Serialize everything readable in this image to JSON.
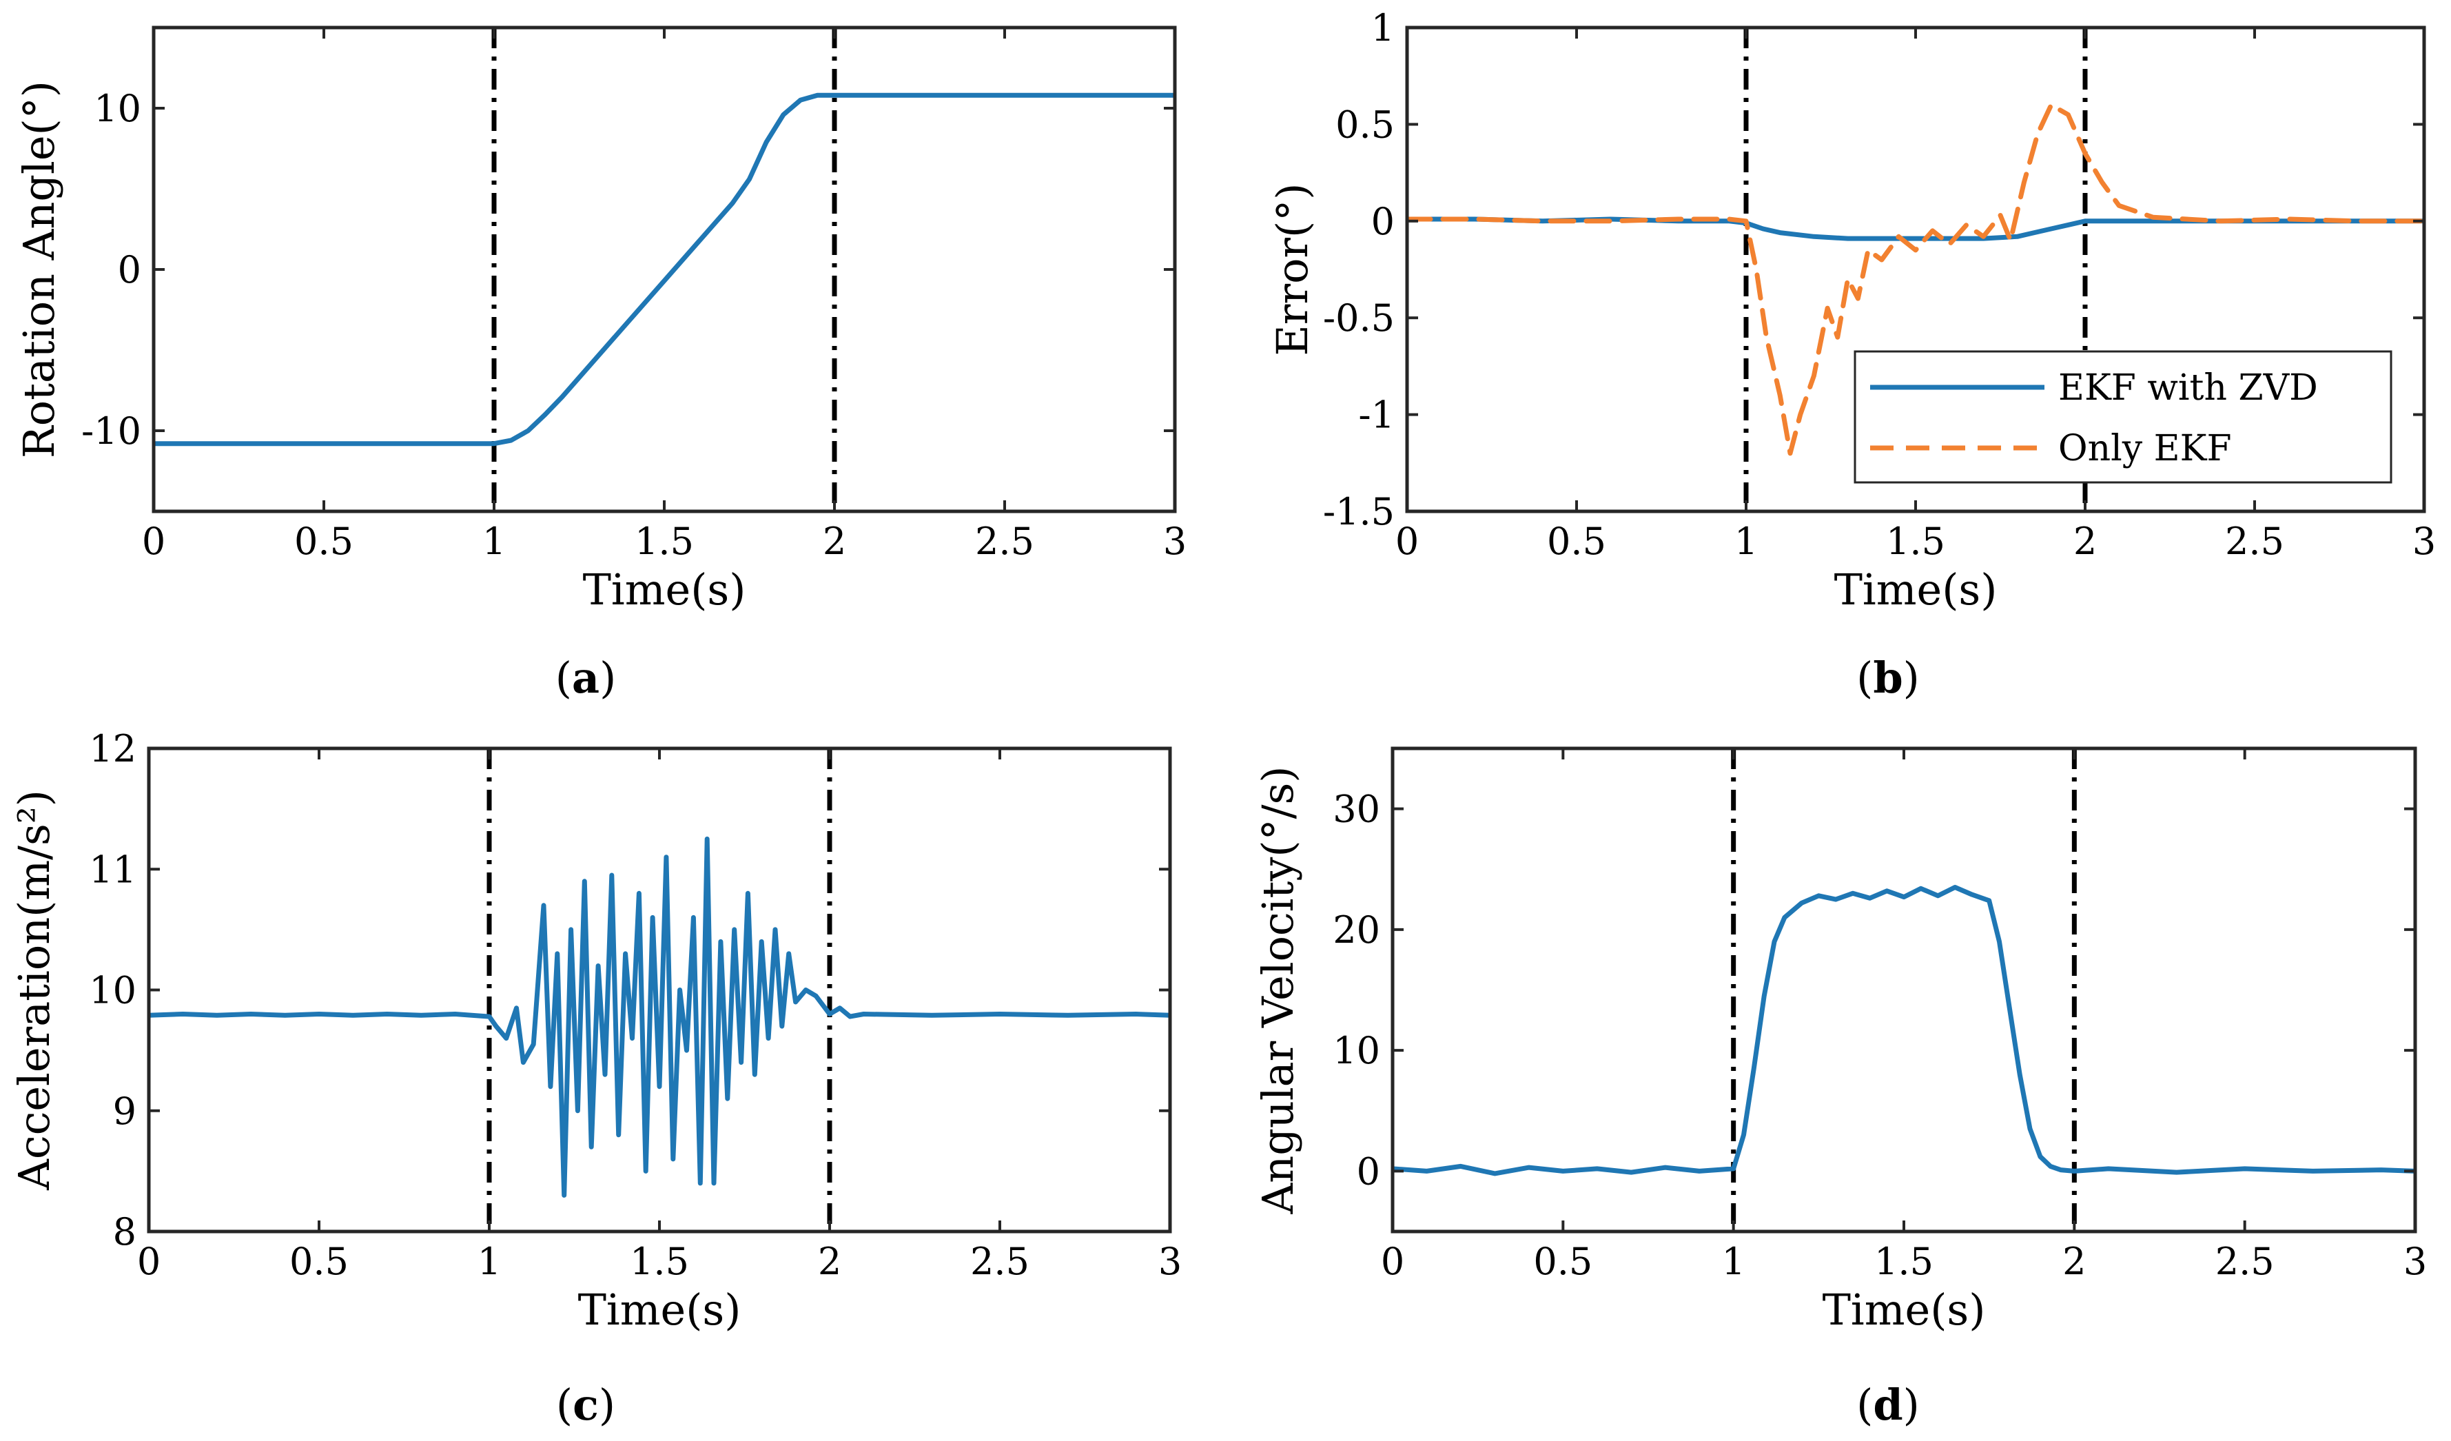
{
  "colors": {
    "series_blue": "#1f77b4",
    "series_orange": "#f28130",
    "marker_line": "#000000",
    "axes": "#262626"
  },
  "chart_data": [
    {
      "id": "a",
      "type": "line",
      "caption": "a",
      "xlabel": "Time(s)",
      "ylabel": "Rotation Angle(°)",
      "xlim": [
        0,
        3
      ],
      "ylim": [
        -15,
        15
      ],
      "xticks": [
        0,
        0.5,
        1,
        1.5,
        2,
        2.5,
        3
      ],
      "xtick_labels": [
        "0",
        "0.5",
        "1",
        "1.5",
        "2",
        "2.5",
        "3"
      ],
      "yticks": [
        -10,
        0,
        10
      ],
      "ytick_labels": [
        "-10",
        "0",
        "10"
      ],
      "event_lines_x": [
        1,
        2
      ],
      "series": [
        {
          "name": "Rotation Angle",
          "color": "#1f77b4",
          "dash": "solid",
          "x": [
            0,
            0.25,
            0.5,
            0.75,
            1.0,
            1.05,
            1.1,
            1.15,
            1.2,
            1.3,
            1.4,
            1.5,
            1.6,
            1.7,
            1.75,
            1.8,
            1.85,
            1.9,
            1.95,
            2.0,
            2.25,
            2.5,
            2.75,
            3.0
          ],
          "y": [
            -10.8,
            -10.8,
            -10.8,
            -10.8,
            -10.8,
            -10.6,
            -10.0,
            -9.0,
            -7.9,
            -5.5,
            -3.1,
            -0.7,
            1.7,
            4.1,
            5.6,
            7.9,
            9.6,
            10.5,
            10.8,
            10.8,
            10.8,
            10.8,
            10.8,
            10.8
          ]
        }
      ]
    },
    {
      "id": "b",
      "type": "line",
      "caption": "b",
      "xlabel": "Time(s)",
      "ylabel": "Error(°)",
      "xlim": [
        0,
        3
      ],
      "ylim": [
        -1.5,
        1
      ],
      "xticks": [
        0,
        0.5,
        1,
        1.5,
        2,
        2.5,
        3
      ],
      "xtick_labels": [
        "0",
        "0.5",
        "1",
        "1.5",
        "2",
        "2.5",
        "3"
      ],
      "yticks": [
        -1.5,
        -1,
        -0.5,
        0,
        0.5,
        1
      ],
      "ytick_labels": [
        "-1.5",
        "-1",
        "-0.5",
        "0",
        "0.5",
        "1"
      ],
      "event_lines_x": [
        1,
        2
      ],
      "legend": {
        "position": "lower-right",
        "entries": [
          "EKF with ZVD",
          "Only EKF"
        ]
      },
      "series": [
        {
          "name": "EKF with ZVD",
          "color": "#1f77b4",
          "dash": "solid",
          "x": [
            0,
            0.2,
            0.4,
            0.6,
            0.8,
            0.95,
            1.0,
            1.05,
            1.1,
            1.2,
            1.3,
            1.4,
            1.5,
            1.6,
            1.7,
            1.8,
            1.85,
            1.9,
            1.95,
            2.0,
            2.1,
            2.3,
            2.5,
            2.7,
            2.9,
            3.0
          ],
          "y": [
            0.01,
            0.01,
            0.0,
            0.01,
            0.0,
            0.0,
            -0.01,
            -0.04,
            -0.06,
            -0.08,
            -0.09,
            -0.09,
            -0.09,
            -0.09,
            -0.09,
            -0.08,
            -0.06,
            -0.04,
            -0.02,
            0.0,
            0.0,
            0.0,
            0.0,
            0.0,
            0.0,
            0.0
          ]
        },
        {
          "name": "Only EKF",
          "color": "#f28130",
          "dash": "dashed",
          "x": [
            0,
            0.2,
            0.4,
            0.6,
            0.8,
            0.95,
            1.0,
            1.03,
            1.06,
            1.1,
            1.13,
            1.16,
            1.2,
            1.24,
            1.27,
            1.3,
            1.33,
            1.36,
            1.4,
            1.45,
            1.5,
            1.55,
            1.6,
            1.65,
            1.7,
            1.75,
            1.78,
            1.82,
            1.86,
            1.9,
            1.95,
            2.0,
            2.05,
            2.1,
            2.2,
            2.4,
            2.6,
            2.8,
            3.0
          ],
          "y": [
            0.01,
            0.01,
            0.0,
            0.0,
            0.01,
            0.01,
            0.0,
            -0.25,
            -0.6,
            -0.9,
            -1.2,
            -1.0,
            -0.8,
            -0.45,
            -0.6,
            -0.3,
            -0.4,
            -0.15,
            -0.2,
            -0.08,
            -0.15,
            -0.05,
            -0.12,
            -0.02,
            -0.08,
            0.03,
            -0.1,
            0.2,
            0.45,
            0.6,
            0.55,
            0.35,
            0.2,
            0.08,
            0.02,
            0.0,
            0.01,
            0.0,
            0.0
          ]
        }
      ]
    },
    {
      "id": "c",
      "type": "line",
      "caption": "c",
      "xlabel": "Time(s)",
      "ylabel": "Acceleration(m/s²)",
      "xlim": [
        0,
        3
      ],
      "ylim": [
        8,
        12
      ],
      "xticks": [
        0,
        0.5,
        1,
        1.5,
        2,
        2.5,
        3
      ],
      "xtick_labels": [
        "0",
        "0.5",
        "1",
        "1.5",
        "2",
        "2.5",
        "3"
      ],
      "yticks": [
        8,
        9,
        10,
        11,
        12
      ],
      "ytick_labels": [
        "8",
        "9",
        "10",
        "11",
        "12"
      ],
      "event_lines_x": [
        1,
        2
      ],
      "series": [
        {
          "name": "Acceleration",
          "color": "#1f77b4",
          "dash": "solid",
          "x": [
            0,
            0.1,
            0.2,
            0.3,
            0.4,
            0.5,
            0.6,
            0.7,
            0.8,
            0.9,
            1.0,
            1.02,
            1.05,
            1.08,
            1.1,
            1.13,
            1.16,
            1.18,
            1.2,
            1.22,
            1.24,
            1.26,
            1.28,
            1.3,
            1.32,
            1.34,
            1.36,
            1.38,
            1.4,
            1.42,
            1.44,
            1.46,
            1.48,
            1.5,
            1.52,
            1.54,
            1.56,
            1.58,
            1.6,
            1.62,
            1.64,
            1.66,
            1.68,
            1.7,
            1.72,
            1.74,
            1.76,
            1.78,
            1.8,
            1.82,
            1.84,
            1.86,
            1.88,
            1.9,
            1.93,
            1.96,
            2.0,
            2.03,
            2.06,
            2.1,
            2.3,
            2.5,
            2.7,
            2.9,
            3.0
          ],
          "y": [
            9.79,
            9.8,
            9.79,
            9.8,
            9.79,
            9.8,
            9.79,
            9.8,
            9.79,
            9.8,
            9.78,
            9.7,
            9.6,
            9.85,
            9.4,
            9.55,
            10.7,
            9.2,
            10.3,
            8.3,
            10.5,
            9.0,
            10.9,
            8.7,
            10.2,
            9.3,
            10.95,
            8.8,
            10.3,
            9.6,
            10.8,
            8.5,
            10.6,
            9.2,
            11.1,
            8.6,
            10.0,
            9.5,
            10.6,
            8.4,
            11.25,
            8.4,
            10.4,
            9.1,
            10.5,
            9.4,
            10.8,
            9.3,
            10.4,
            9.6,
            10.5,
            9.7,
            10.3,
            9.9,
            10.0,
            9.95,
            9.8,
            9.85,
            9.78,
            9.8,
            9.79,
            9.8,
            9.79,
            9.8,
            9.79
          ]
        }
      ]
    },
    {
      "id": "d",
      "type": "line",
      "caption": "d",
      "xlabel": "Time(s)",
      "ylabel": "Angular Velocity(°/s)",
      "xlim": [
        0,
        3
      ],
      "ylim": [
        -5,
        35
      ],
      "xticks": [
        0,
        0.5,
        1,
        1.5,
        2,
        2.5,
        3
      ],
      "xtick_labels": [
        "0",
        "0.5",
        "1",
        "1.5",
        "2",
        "2.5",
        "3"
      ],
      "yticks": [
        0,
        10,
        20,
        30
      ],
      "ytick_labels": [
        "0",
        "10",
        "20",
        "30"
      ],
      "event_lines_x": [
        1,
        2
      ],
      "series": [
        {
          "name": "Angular Velocity",
          "color": "#1f77b4",
          "dash": "solid",
          "x": [
            0,
            0.1,
            0.2,
            0.3,
            0.4,
            0.5,
            0.6,
            0.7,
            0.8,
            0.9,
            1.0,
            1.03,
            1.06,
            1.09,
            1.12,
            1.15,
            1.2,
            1.25,
            1.3,
            1.35,
            1.4,
            1.45,
            1.5,
            1.55,
            1.6,
            1.65,
            1.7,
            1.75,
            1.78,
            1.81,
            1.84,
            1.87,
            1.9,
            1.93,
            1.96,
            2.0,
            2.1,
            2.3,
            2.5,
            2.7,
            2.9,
            3.0
          ],
          "y": [
            0.2,
            0.0,
            0.4,
            -0.2,
            0.3,
            0.0,
            0.2,
            -0.1,
            0.3,
            0.0,
            0.2,
            3.0,
            8.5,
            14.5,
            19.0,
            21.0,
            22.2,
            22.8,
            22.5,
            23.0,
            22.6,
            23.2,
            22.7,
            23.4,
            22.8,
            23.5,
            22.9,
            22.4,
            19.0,
            13.5,
            8.0,
            3.5,
            1.2,
            0.4,
            0.1,
            0.0,
            0.2,
            -0.1,
            0.2,
            0.0,
            0.1,
            0.0
          ]
        }
      ]
    }
  ]
}
